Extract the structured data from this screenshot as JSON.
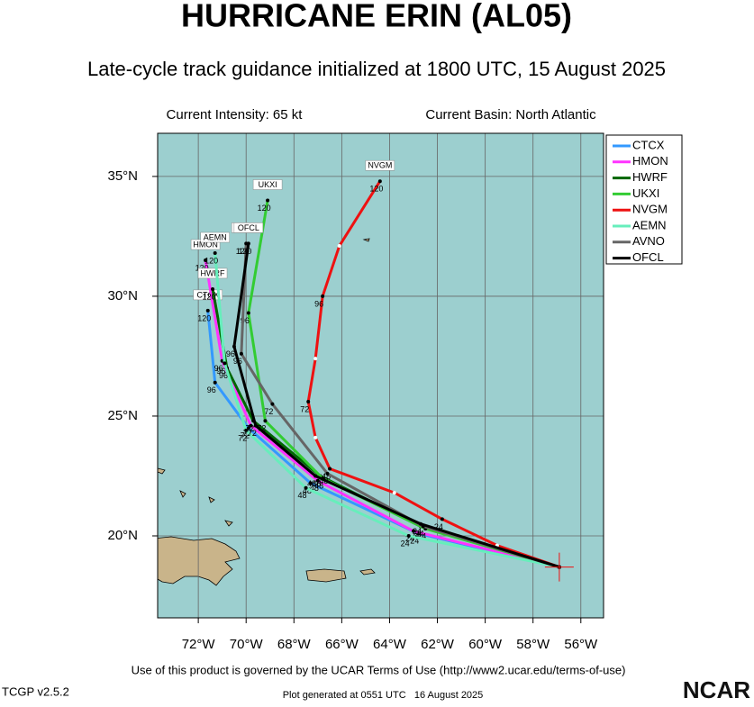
{
  "chart_data": {
    "type": "track-map",
    "title": "HURRICANE ERIN (AL05)",
    "subtitle": "Late-cycle track guidance initialized at 1800 UTC, 15 August 2025",
    "annotations": [
      "Current Intensity: 65 kt",
      "Current Basin: North Atlantic"
    ],
    "xlim": [
      -73.7,
      -55.05
    ],
    "ylim": [
      16.58,
      36.8
    ],
    "xticks": [
      {
        "value": -72,
        "label": "72°W"
      },
      {
        "value": -70,
        "label": "70°W"
      },
      {
        "value": -68,
        "label": "68°W"
      },
      {
        "value": -66,
        "label": "66°W"
      },
      {
        "value": -64,
        "label": "64°W"
      },
      {
        "value": -62,
        "label": "62°W"
      },
      {
        "value": -60,
        "label": "60°W"
      },
      {
        "value": -58,
        "label": "58°W"
      },
      {
        "value": -56,
        "label": "56°W"
      }
    ],
    "yticks": [
      {
        "value": 20,
        "label": "20°N"
      },
      {
        "value": 25,
        "label": "25°N"
      },
      {
        "value": 30,
        "label": "30°N"
      },
      {
        "value": 35,
        "label": "35°N"
      }
    ],
    "grid": true,
    "legend": "top-right",
    "series": [
      {
        "name": "CTCX",
        "color": "#3399ff",
        "hours": [
          0,
          24,
          48,
          72,
          96,
          120
        ],
        "lon": [
          -56.9,
          -62.8,
          -67.3,
          -69.9,
          -71.3,
          -71.6
        ],
        "lat": [
          18.7,
          20.1,
          22.2,
          24.5,
          26.4,
          29.4
        ]
      },
      {
        "name": "HMON",
        "color": "#ff33ff",
        "hours": [
          0,
          24,
          48,
          72,
          96,
          120
        ],
        "lon": [
          -56.9,
          -63.0,
          -67.0,
          -69.8,
          -71.0,
          -71.7
        ],
        "lat": [
          18.7,
          20.2,
          22.3,
          24.6,
          27.3,
          31.5
        ]
      },
      {
        "name": "HWRF",
        "color": "#006600",
        "hours": [
          0,
          24,
          48,
          72,
          96,
          120
        ],
        "lon": [
          -56.9,
          -62.7,
          -66.9,
          -69.7,
          -70.8,
          -71.4
        ],
        "lat": [
          18.7,
          20.4,
          22.5,
          24.8,
          27.0,
          30.3
        ]
      },
      {
        "name": "UKXI",
        "color": "#33cc33",
        "hours": [
          0,
          24,
          48,
          72,
          96,
          120
        ],
        "lon": [
          -56.9,
          -62.5,
          -66.8,
          -69.2,
          -69.9,
          -69.1
        ],
        "lat": [
          18.7,
          20.3,
          22.4,
          24.8,
          29.3,
          34.0
        ]
      },
      {
        "name": "NVGM",
        "color": "#ee1111",
        "hours": [
          0,
          12,
          24,
          36,
          48,
          60,
          72,
          84,
          96,
          108,
          120
        ],
        "lon": [
          -56.9,
          -59.5,
          -61.8,
          -63.8,
          -66.5,
          -67.1,
          -67.4,
          -67.1,
          -66.8,
          -66.1,
          -64.4
        ],
        "lat": [
          18.7,
          19.6,
          20.7,
          21.8,
          22.8,
          24.1,
          25.6,
          27.4,
          30.0,
          32.1,
          34.8
        ]
      },
      {
        "name": "AEMN",
        "color": "#66eebb",
        "hours": [
          0,
          24,
          48,
          72,
          96,
          120
        ],
        "lon": [
          -56.9,
          -63.2,
          -67.5,
          -70.0,
          -70.9,
          -71.3
        ],
        "lat": [
          18.7,
          20.0,
          22.0,
          24.4,
          27.2,
          31.8
        ]
      },
      {
        "name": "AVNO",
        "color": "#666666",
        "hours": [
          0,
          24,
          48,
          72,
          96,
          120
        ],
        "lon": [
          -56.9,
          -62.6,
          -66.6,
          -68.9,
          -70.2,
          -70.0
        ],
        "lat": [
          18.7,
          20.4,
          22.6,
          25.5,
          27.6,
          32.2
        ]
      },
      {
        "name": "OFCL",
        "color": "#000000",
        "hours": [
          0,
          24,
          48,
          72,
          96,
          120
        ],
        "lon": [
          -56.9,
          -62.7,
          -67.1,
          -69.6,
          -70.5,
          -69.9
        ],
        "lat": [
          18.7,
          20.5,
          22.5,
          24.6,
          27.9,
          32.2
        ]
      }
    ],
    "footer": "Use of this product is governed by the UCAR Terms of Use (http://www2.ucar.edu/terms-of-use)",
    "version": "TCGP v2.5.2",
    "generated": "Plot generated at 0551 UTC   16 August 2025",
    "logo": "NCAR"
  }
}
